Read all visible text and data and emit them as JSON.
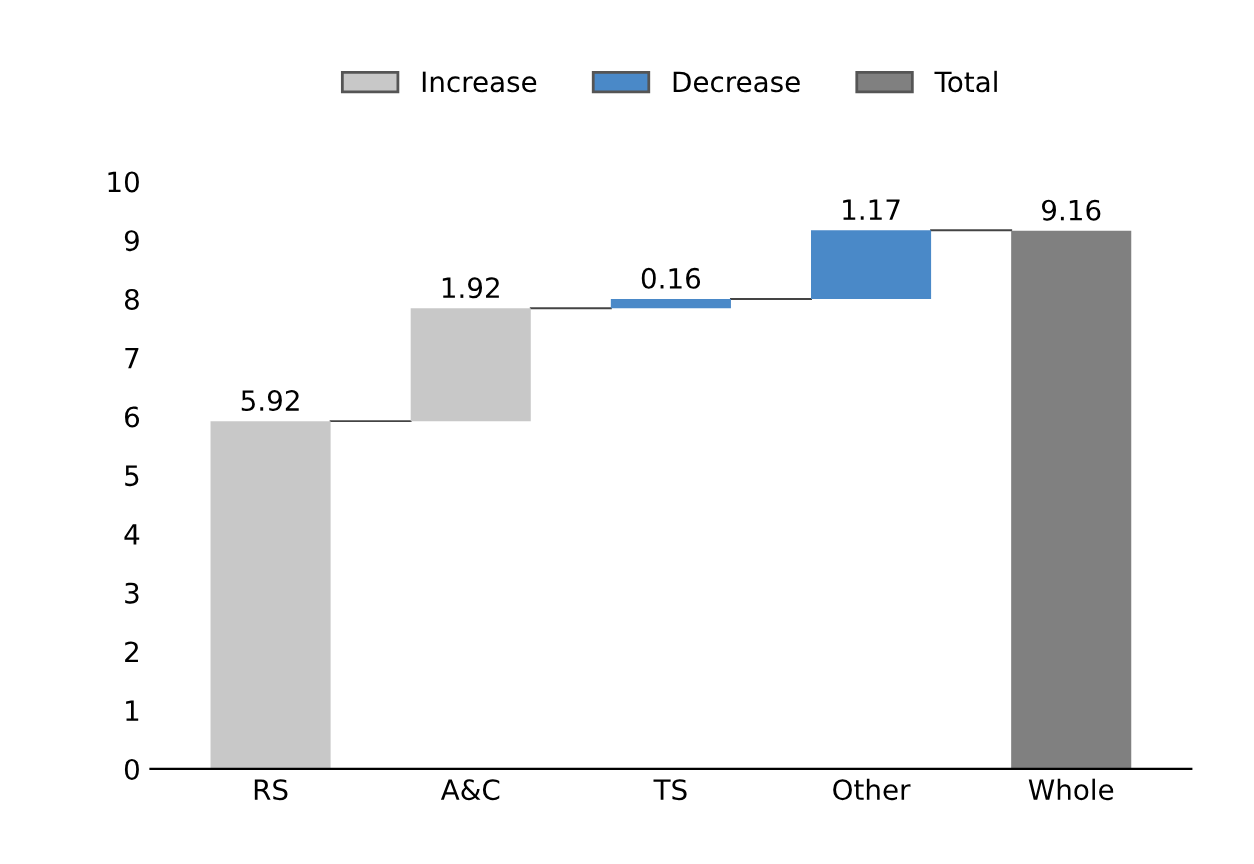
{
  "chart_data": {
    "type": "bar",
    "categories": [
      "RS",
      "A&C",
      "TS",
      "Other",
      "Whole"
    ],
    "series": [
      {
        "name": "Increase",
        "color": "#c8c8c8",
        "values": [
          5.92,
          1.92,
          null,
          null,
          null
        ],
        "base": [
          0,
          5.92,
          null,
          null,
          null
        ]
      },
      {
        "name": "Decrease",
        "color": "#4a89c8",
        "values": [
          null,
          null,
          0.16,
          1.17,
          null
        ],
        "base": [
          null,
          null,
          7.84,
          8.0,
          null
        ]
      },
      {
        "name": "Total",
        "color": "#808080",
        "values": [
          null,
          null,
          null,
          null,
          9.16
        ],
        "base": [
          null,
          null,
          null,
          null,
          0
        ]
      }
    ],
    "ylim": [
      0,
      10
    ],
    "yticks": [
      0,
      1,
      2,
      3,
      4,
      5,
      6,
      7,
      8,
      9,
      10
    ],
    "grid": false,
    "legend": "top",
    "data_labels": true
  }
}
